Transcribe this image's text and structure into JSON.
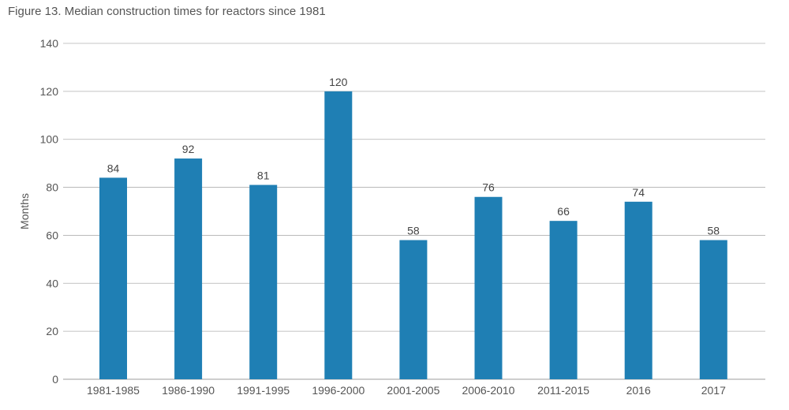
{
  "chart_data": {
    "type": "bar",
    "title": "Figure 13. Median construction times for reactors since 1981",
    "ylabel": "Months",
    "xlabel": "",
    "categories": [
      "1981-1985",
      "1986-1990",
      "1991-1995",
      "1996-2000",
      "2001-2005",
      "2006-2010",
      "2011-2015",
      "2016",
      "2017"
    ],
    "values": [
      84,
      92,
      81,
      120,
      58,
      76,
      66,
      74,
      58
    ],
    "data_labels": [
      "84",
      "92",
      "81",
      "120",
      "58",
      "76",
      "66",
      "74",
      "58"
    ],
    "ylim": [
      0,
      140
    ],
    "yticks": [
      "0",
      "20",
      "40",
      "60",
      "80",
      "100",
      "120",
      "140"
    ],
    "grid": true,
    "legend": "none",
    "bar_color": "#1f7fb4",
    "grid_color": "#b0b0b0"
  }
}
